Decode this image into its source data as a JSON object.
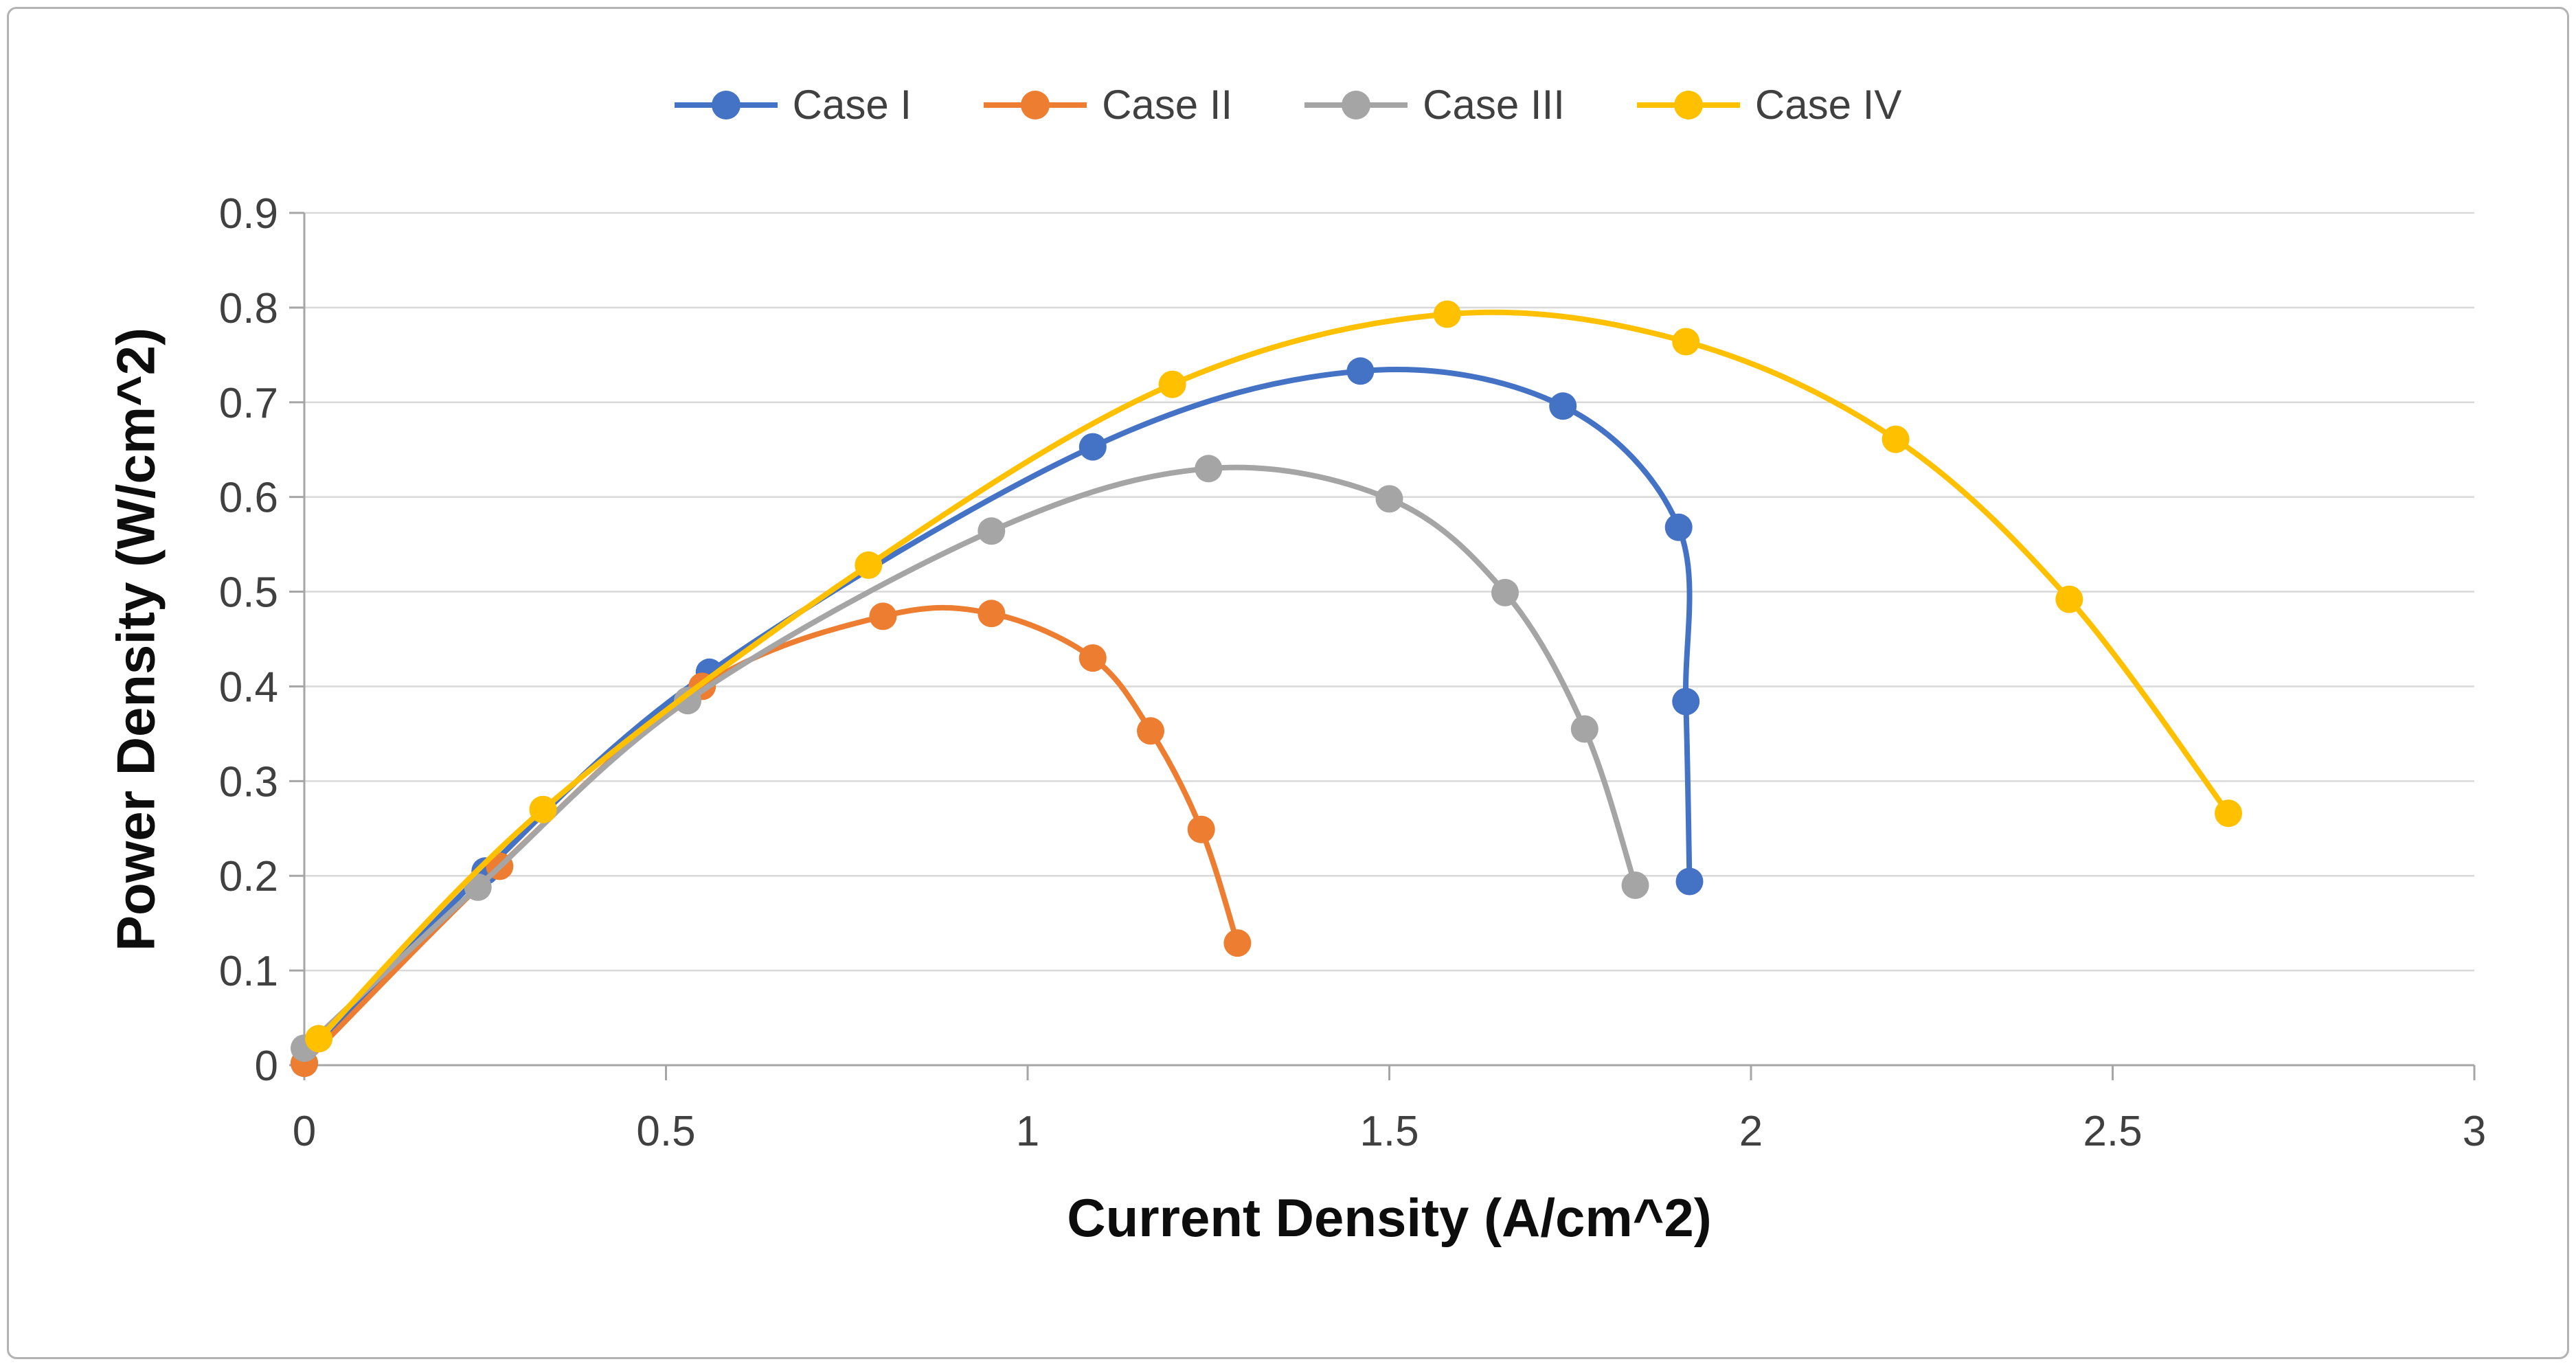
{
  "chart_data": {
    "type": "line",
    "title": "",
    "xlabel": "Current Density (A/cm^2)",
    "ylabel": "Power Density (W/cm^2)",
    "xlim": [
      0,
      3
    ],
    "ylim": [
      0,
      0.9
    ],
    "grid": "horizontal",
    "legend_position": "top-center",
    "xticks": {
      "values": [
        0,
        0.5,
        1,
        1.5,
        2,
        2.5,
        3
      ],
      "labels": [
        "0",
        "0.5",
        "1",
        "1.5",
        "2",
        "2.5",
        "3"
      ]
    },
    "yticks": {
      "values": [
        0,
        0.1,
        0.2,
        0.3,
        0.4,
        0.5,
        0.6,
        0.7,
        0.8,
        0.9
      ],
      "labels": [
        "0",
        "0.1",
        "0.2",
        "0.3",
        "0.4",
        "0.5",
        "0.6",
        "0.7",
        "0.8",
        "0.9"
      ]
    },
    "series": [
      {
        "name": "Case I",
        "color": "#4472C4",
        "points": [
          [
            0,
            0.002
          ],
          [
            0.25,
            0.205
          ],
          [
            0.56,
            0.415
          ],
          [
            1.09,
            0.653
          ],
          [
            1.46,
            0.733
          ],
          [
            1.74,
            0.696
          ],
          [
            1.9,
            0.568
          ],
          [
            1.91,
            0.384
          ],
          [
            1.915,
            0.194
          ]
        ]
      },
      {
        "name": "Case II",
        "color": "#ED7D31",
        "points": [
          [
            0,
            0.002
          ],
          [
            0.27,
            0.21
          ],
          [
            0.55,
            0.4
          ],
          [
            0.8,
            0.474
          ],
          [
            0.95,
            0.477
          ],
          [
            1.09,
            0.43
          ],
          [
            1.17,
            0.353
          ],
          [
            1.24,
            0.249
          ],
          [
            1.29,
            0.129
          ]
        ]
      },
      {
        "name": "Case III",
        "color": "#A5A5A5",
        "points": [
          [
            0,
            0.018
          ],
          [
            0.24,
            0.188
          ],
          [
            0.53,
            0.385
          ],
          [
            0.95,
            0.564
          ],
          [
            1.25,
            0.63
          ],
          [
            1.5,
            0.598
          ],
          [
            1.66,
            0.499
          ],
          [
            1.77,
            0.355
          ],
          [
            1.84,
            0.19
          ]
        ]
      },
      {
        "name": "Case IV",
        "color": "#FFC000",
        "points": [
          [
            0.02,
            0.028
          ],
          [
            0.33,
            0.27
          ],
          [
            0.78,
            0.528
          ],
          [
            1.2,
            0.719
          ],
          [
            1.58,
            0.793
          ],
          [
            1.91,
            0.764
          ],
          [
            2.2,
            0.661
          ],
          [
            2.44,
            0.492
          ],
          [
            2.66,
            0.266
          ]
        ]
      }
    ]
  },
  "style_colors": {
    "gridline": "#D9D9D9",
    "axis_line": "#A6A6A6",
    "tick_label": "#404040",
    "axis_title": "#0D0D0D",
    "frame_border": "#B3B3B3",
    "background": "#FFFFFF"
  }
}
